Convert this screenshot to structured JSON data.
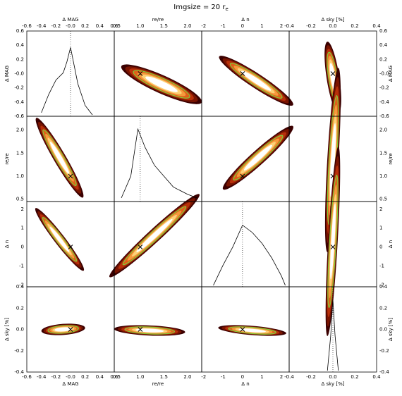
{
  "title": "Imgsize = 20 r",
  "title_sub": "e",
  "chart_data": {
    "type": "scatter",
    "grid": false,
    "legend": "none",
    "colors": {
      "density": [
        "#3b0000",
        "#7a1400",
        "#b8300a",
        "#e0601a",
        "#f59a3c",
        "#fcd278",
        "#ffffff"
      ],
      "contour": "#7ccf3a",
      "marker": "#000000",
      "hist": "#000000"
    },
    "parameters": [
      {
        "key": "dmag",
        "label": "Δ MAG",
        "range": [
          -0.6,
          0.6
        ],
        "ticks": [
          -0.6,
          -0.4,
          -0.2,
          -0.0,
          0.2,
          0.4,
          0.6
        ],
        "tick_labels": [
          "-0.6",
          "-0.4",
          "-0.2",
          "-0.0",
          "0.2",
          "0.4",
          "0.6"
        ],
        "input": 0.0
      },
      {
        "key": "re",
        "label": "r",
        "label_sub": "e",
        "label_over": "/r",
        "label_sub2": "e",
        "range": [
          0.45,
          2.3
        ],
        "ticks": [
          0.5,
          1.0,
          1.5,
          2.0
        ],
        "tick_labels": [
          "0.5",
          "1.0",
          "1.5",
          "2.0"
        ],
        "input": 1.0
      },
      {
        "key": "dn",
        "label": "Δ n",
        "range": [
          -2.1,
          2.4
        ],
        "ticks": [
          -2,
          -1,
          0,
          1,
          2
        ],
        "tick_labels": [
          "-2",
          "-1",
          "0",
          "1",
          "2"
        ],
        "input": 0.0
      },
      {
        "key": "dsky",
        "label": "Δ sky [%]",
        "range": [
          -0.4,
          0.4
        ],
        "ticks": [
          -0.4,
          -0.2,
          0.0,
          0.2,
          0.4
        ],
        "tick_labels": [
          "-0.4",
          "-0.2",
          "0.0",
          "0.2",
          "0.4"
        ],
        "input": 0.0
      }
    ],
    "histograms": [
      {
        "param": "dmag",
        "peak": -0.02,
        "width": 0.12,
        "x": [
          -0.4,
          -0.3,
          -0.2,
          -0.1,
          -0.05,
          0.0,
          0.05,
          0.1,
          0.2,
          0.3
        ],
        "y": [
          0.05,
          0.3,
          0.5,
          0.6,
          0.75,
          0.95,
          0.7,
          0.45,
          0.15,
          0.02
        ]
      },
      {
        "param": "re",
        "peak": 0.95,
        "width": 0.25,
        "x": [
          0.6,
          0.8,
          0.95,
          1.1,
          1.3,
          1.5,
          1.7,
          2.0,
          2.2
        ],
        "y": [
          0.05,
          0.35,
          1.0,
          0.75,
          0.5,
          0.35,
          0.2,
          0.1,
          0.05
        ]
      },
      {
        "param": "dn",
        "peak": 0.0,
        "width": 1.0,
        "x": [
          -1.5,
          -1.0,
          -0.5,
          0.0,
          0.5,
          1.0,
          1.5,
          2.0,
          2.2
        ],
        "y": [
          0.02,
          0.3,
          0.55,
          0.85,
          0.75,
          0.6,
          0.4,
          0.15,
          0.02
        ]
      },
      {
        "param": "dsky",
        "peak": 0.0,
        "width": 0.02,
        "x": [
          -0.05,
          -0.02,
          0.0,
          0.02,
          0.05
        ],
        "y": [
          0.02,
          0.5,
          1.0,
          0.5,
          0.02
        ]
      }
    ],
    "pairs": [
      {
        "x": "re",
        "y": "dmag",
        "center": [
          1.45,
          -0.15
        ],
        "slope": -0.3,
        "half_length": 0.85,
        "half_width": 0.1
      },
      {
        "x": "dn",
        "y": "dmag",
        "center": [
          0.7,
          -0.1
        ],
        "slope": -0.18,
        "half_length": 1.9,
        "half_width": 0.15
      },
      {
        "x": "dsky",
        "y": "dmag",
        "center": [
          0.0,
          -0.05
        ],
        "slope": -10,
        "half_length": 0.05,
        "half_width": 0.03
      },
      {
        "x": "dmag",
        "y": "re",
        "center": [
          -0.15,
          1.4
        ],
        "slope": -2.7,
        "half_length": 0.32,
        "half_width": 0.04
      },
      {
        "x": "dn",
        "y": "re",
        "center": [
          0.8,
          1.4
        ],
        "slope": 0.38,
        "half_length": 1.8,
        "half_width": 0.15
      },
      {
        "x": "dsky",
        "y": "re",
        "center": [
          0.0,
          1.35
        ],
        "slope": 40,
        "half_length": 0.05,
        "half_width": 0.03
      },
      {
        "x": "dmag",
        "y": "dn",
        "center": [
          -0.15,
          0.4
        ],
        "slope": -5,
        "half_length": 0.33,
        "half_width": 0.05
      },
      {
        "x": "re",
        "y": "dn",
        "center": [
          1.3,
          0.6
        ],
        "slope": 2.3,
        "half_length": 0.95,
        "half_width": 0.12
      },
      {
        "x": "dsky",
        "y": "dn",
        "center": [
          0.0,
          0.3
        ],
        "slope": 100,
        "half_length": 0.05,
        "half_width": 0.03
      },
      {
        "x": "dmag",
        "y": "dsky",
        "center": [
          -0.1,
          0.0
        ],
        "slope": 0.05,
        "half_length": 0.3,
        "half_width": 0.018
      },
      {
        "x": "re",
        "y": "dsky",
        "center": [
          1.2,
          -0.01
        ],
        "slope": -0.02,
        "half_length": 0.75,
        "half_width": 0.018
      },
      {
        "x": "dn",
        "y": "dsky",
        "center": [
          0.5,
          -0.01
        ],
        "slope": -0.015,
        "half_length": 1.75,
        "half_width": 0.018
      }
    ]
  }
}
